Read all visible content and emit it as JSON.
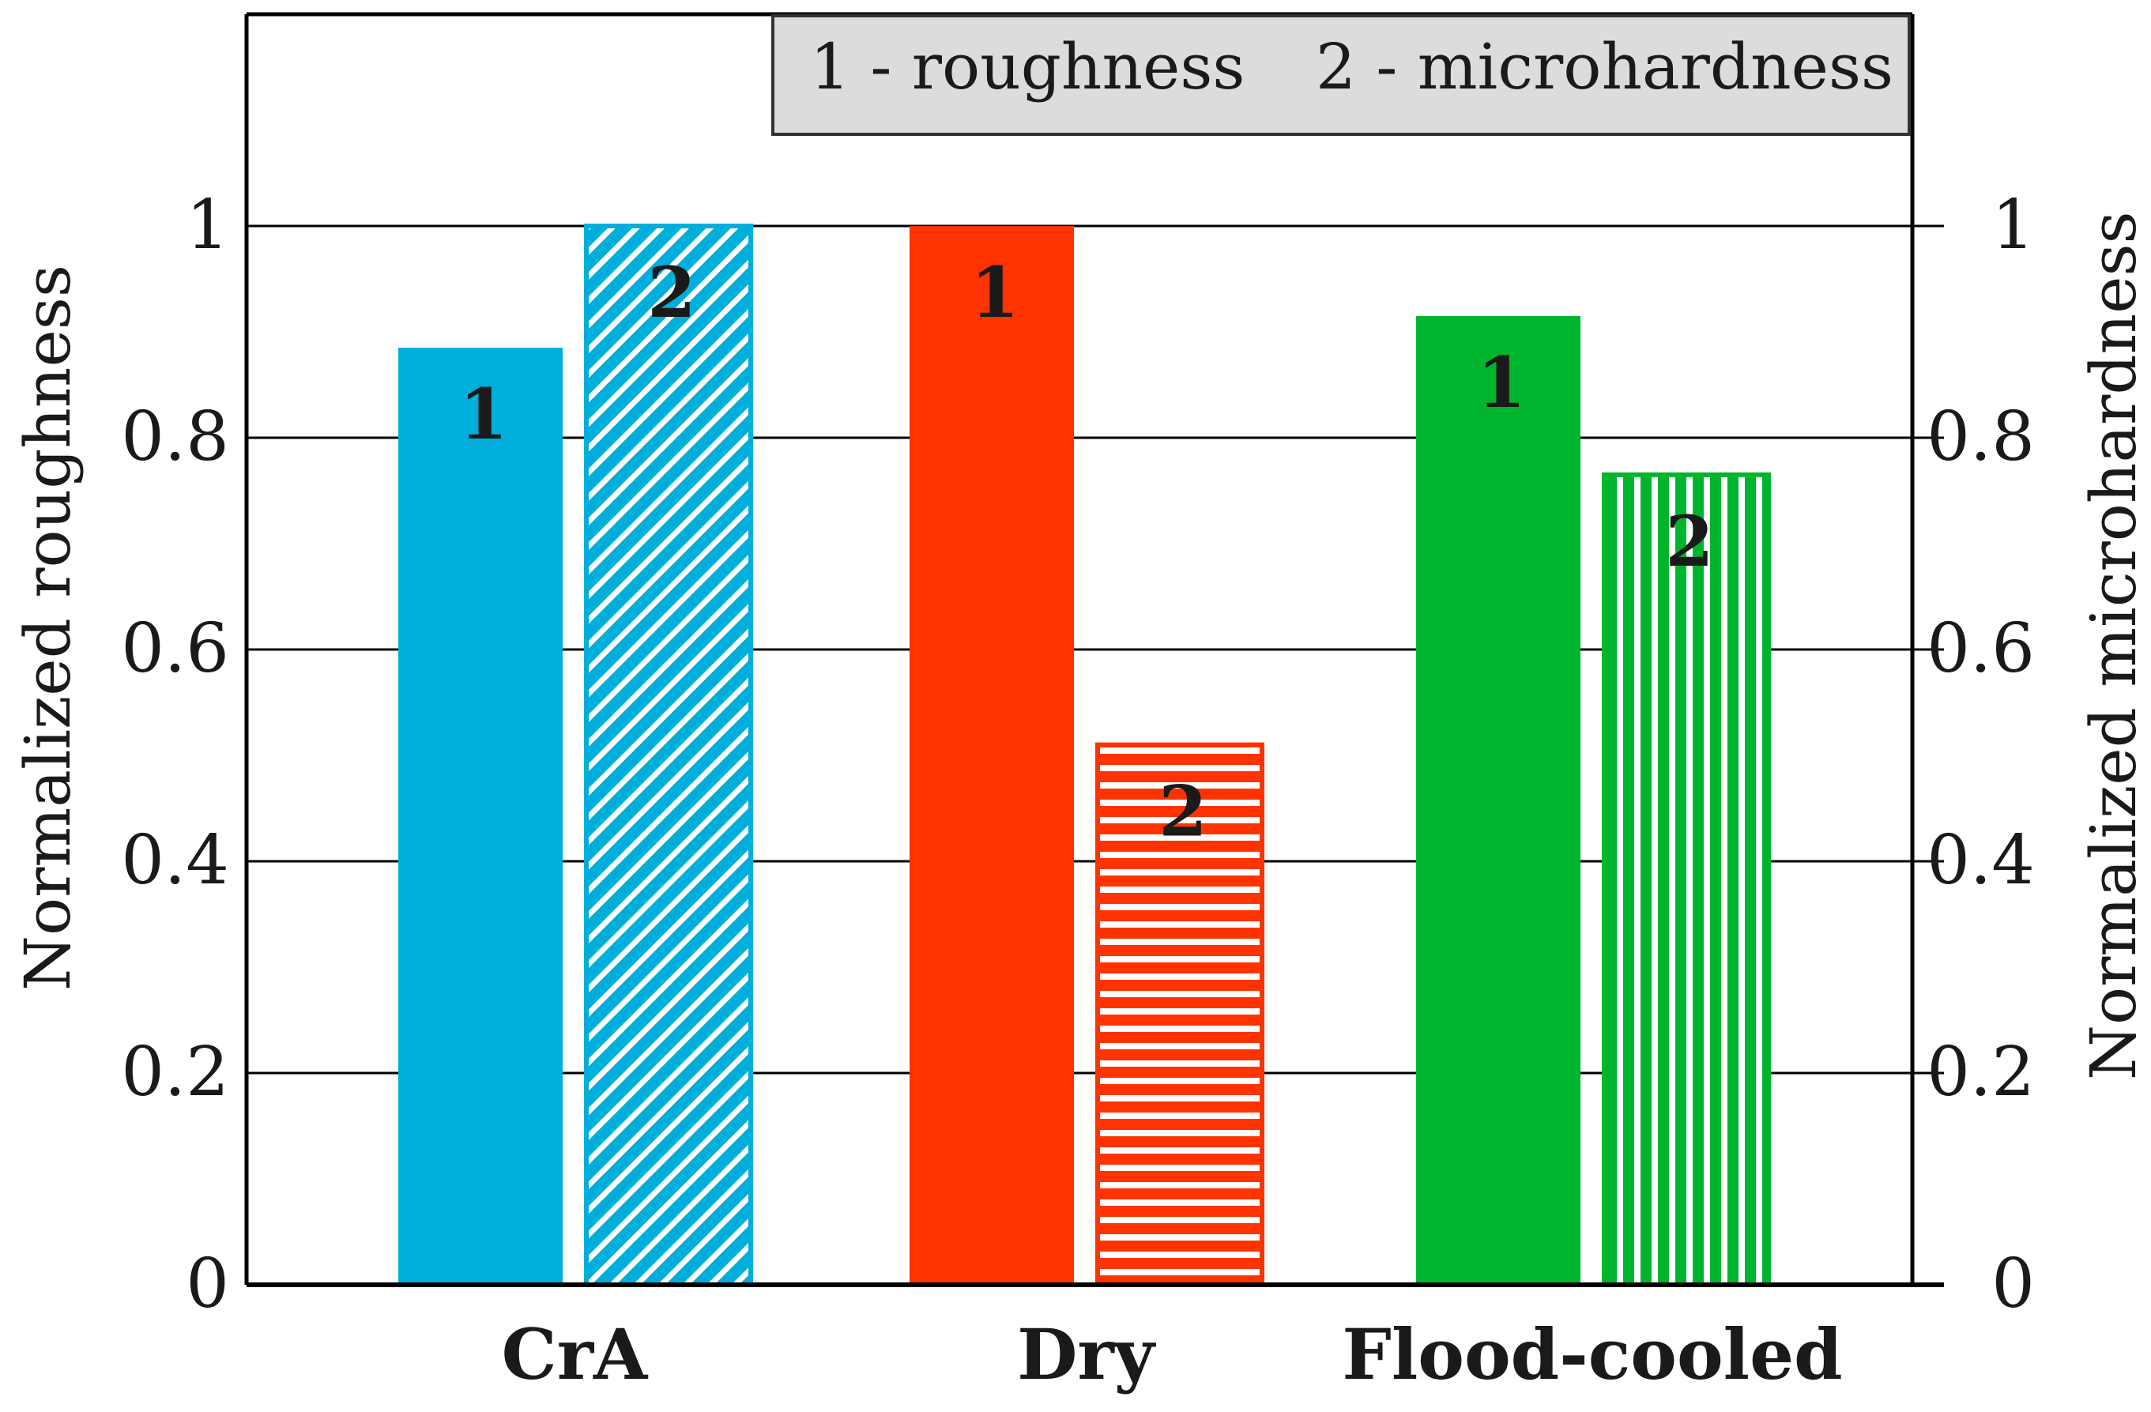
{
  "chart_data": {
    "type": "bar",
    "categories": [
      "CrA",
      "Dry",
      "Flood-cooled"
    ],
    "series": [
      {
        "name": "roughness",
        "legend_label": "1 - roughness",
        "bar_label": "1",
        "values": [
          0.885,
          1.0,
          0.915
        ],
        "axis": "left"
      },
      {
        "name": "microhardness",
        "legend_label": "2 - microhardness",
        "bar_label": "2",
        "values": [
          1.0,
          0.51,
          0.765
        ],
        "axis": "right"
      }
    ],
    "category_colors": [
      "#00AEDB",
      "#FF3300",
      "#00B52E"
    ],
    "patterns": [
      "diagonal",
      "horizontal",
      "vertical"
    ],
    "ylabel_left": "Normalized roughness",
    "ylabel_right": "Normalized microhardness",
    "ylim": [
      0,
      1.2
    ],
    "yticks": [
      0,
      0.2,
      0.4,
      0.6,
      0.8,
      1
    ],
    "ytick_labels": [
      "0",
      "0.2",
      "0.4",
      "0.6",
      "0.8",
      "1"
    ],
    "grid": true,
    "legend_position": "top-right"
  }
}
